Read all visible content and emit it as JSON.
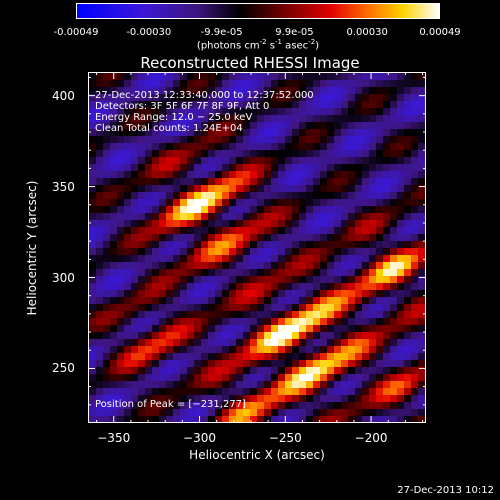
{
  "colorbar": {
    "ticks": [
      "-0.00049",
      "-0.00030",
      "-9.9e-05",
      "9.9e-05",
      "0.00030",
      "0.00049"
    ],
    "unit_main": "(photons cm",
    "unit_sup1": "-2",
    "unit_mid": " s",
    "unit_sup2": "-1",
    "unit_end": " asec",
    "unit_sup3": "-2",
    "unit_close": ")"
  },
  "chart_data": {
    "type": "heatmap",
    "title": "Reconstructed RHESSI Image",
    "xlabel": "Heliocentric X (arcsec)",
    "ylabel": "Heliocentric Y (arcsec)",
    "xlim": [
      -365,
      -168
    ],
    "ylim": [
      220,
      413
    ],
    "xticks": [
      -350,
      -300,
      -250,
      -200
    ],
    "yticks": [
      250,
      300,
      350,
      400
    ],
    "xtick_labels": [
      "−350",
      "−300",
      "−250",
      "−200"
    ],
    "ytick_labels": [
      "250",
      "300",
      "350",
      "400"
    ],
    "peak": [
      -231,
      277
    ],
    "annotations": {
      "time_range": "27-Dec-2013 12:33:40.000 to 12:37:52.000",
      "detectors": "Detectors: 3F 5F 6F 7F 8F 9F, Att 0",
      "energy": "Energy Range: 12.0 − 25.0 keV",
      "method": "Clean     Total counts: 1.24E+04",
      "peak_text": "Position of Peak = [−231,277]"
    }
  },
  "footer": {
    "timestamp": "27-Dec-2013 10:12"
  }
}
